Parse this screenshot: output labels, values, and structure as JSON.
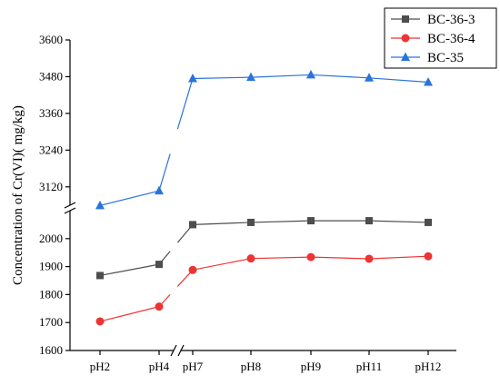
{
  "chart_data": {
    "type": "line",
    "ylabel": "Concentration of Cr(VI)( mg/kg)",
    "categories": [
      "pH2",
      "pH4",
      "pH7",
      "pH8",
      "pH9",
      "pH11",
      "pH12"
    ],
    "axis_breaks": {
      "x": "between pH4 and pH7",
      "y": "between 2100 and 3060"
    },
    "y_ranges": {
      "lower": {
        "ylim": [
          1600,
          2100
        ],
        "ticks": [
          1600,
          1700,
          1800,
          1900,
          2000
        ]
      },
      "upper": {
        "ylim": [
          3060,
          3600
        ],
        "ticks": [
          3120,
          3240,
          3360,
          3480,
          3600
        ]
      }
    },
    "legend_position": "top-right",
    "grid": false,
    "series": [
      {
        "name": "BC-36-3",
        "color": "#4d4d4d",
        "marker": "square",
        "values": [
          1868,
          1908,
          2050,
          2058,
          2064,
          2064,
          2058
        ]
      },
      {
        "name": "BC-36-4",
        "color": "#ee3333",
        "marker": "circle",
        "values": [
          1704,
          1757,
          1888,
          1929,
          1934,
          1928,
          1937
        ]
      },
      {
        "name": "BC-35",
        "color": "#2a73dc",
        "marker": "triangle",
        "values": [
          3059,
          3107,
          3474,
          3478,
          3486,
          3476,
          3462
        ]
      }
    ]
  }
}
